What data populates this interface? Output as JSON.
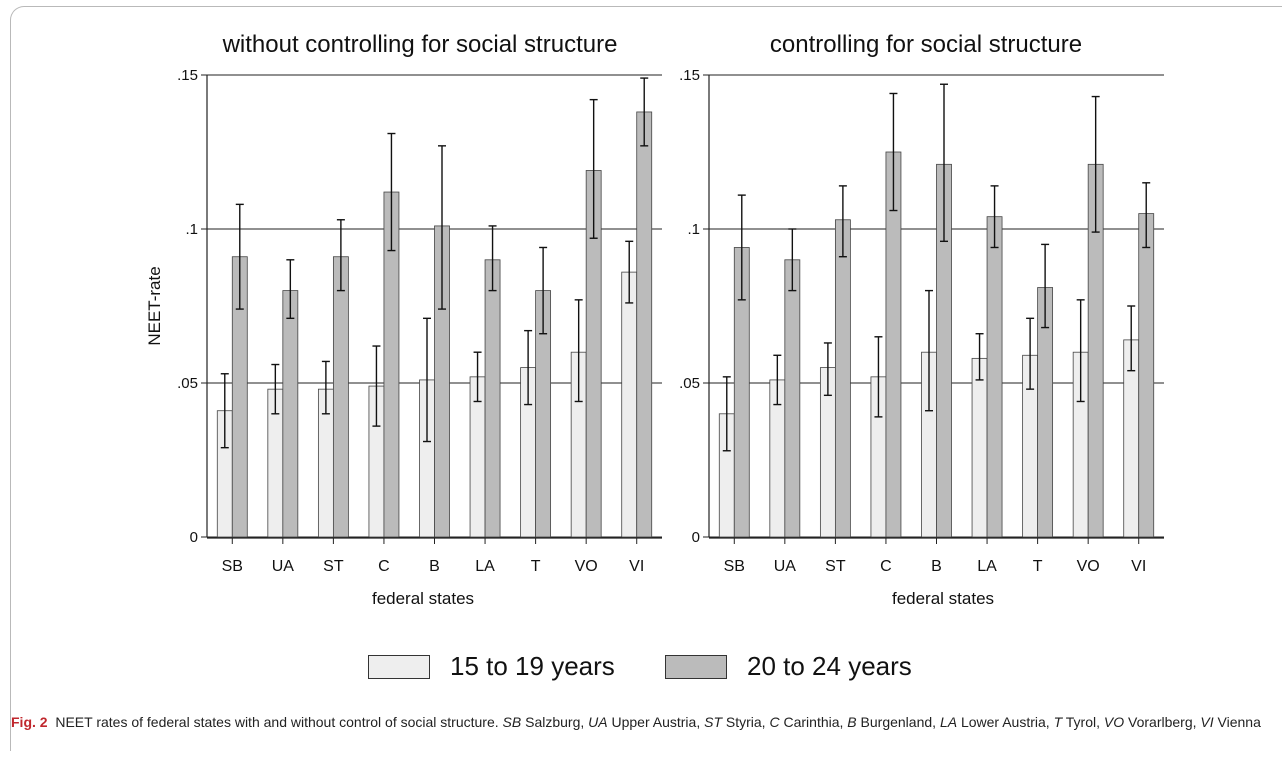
{
  "colors": {
    "bar_15_19": "#eeeeee",
    "bar_20_24": "#bbbbbb",
    "stroke": "#222222",
    "gridline": "#222222",
    "figure_label": "#c0272d"
  },
  "legend": {
    "items": [
      {
        "label": "15 to 19 years",
        "color": "#eeeeee"
      },
      {
        "label": "20 to 24 years",
        "color": "#bbbbbb"
      }
    ]
  },
  "caption": {
    "fig_label": "Fig. 2",
    "title": "NEET rates of federal states with and without control of social structure.",
    "abbreviations": [
      {
        "abbr": "SB",
        "name": "Salzburg"
      },
      {
        "abbr": "UA",
        "name": "Upper Austria"
      },
      {
        "abbr": "ST",
        "name": "Styria"
      },
      {
        "abbr": "C",
        "name": "Carinthia"
      },
      {
        "abbr": "B",
        "name": "Burgenland"
      },
      {
        "abbr": "LA",
        "name": "Lower Austria"
      },
      {
        "abbr": "T",
        "name": "Tyrol"
      },
      {
        "abbr": "VO",
        "name": "Vorarlberg"
      },
      {
        "abbr": "VI",
        "name": "Vienna"
      }
    ]
  },
  "chart_data": [
    {
      "type": "bar",
      "title": "without controlling for social structure",
      "xlabel": "federal states",
      "ylabel": "NEET-rate",
      "ylim": [
        0,
        0.15
      ],
      "yticks": [
        0,
        0.05,
        0.1,
        0.15
      ],
      "ytick_labels": [
        "0",
        ".05",
        ".1",
        ".15"
      ],
      "grid": true,
      "categories": [
        "SB",
        "UA",
        "ST",
        "C",
        "B",
        "LA",
        "T",
        "VO",
        "VI"
      ],
      "series": [
        {
          "name": "15 to 19 years",
          "values": [
            0.041,
            0.048,
            0.048,
            0.049,
            0.051,
            0.052,
            0.055,
            0.06,
            0.086
          ],
          "ci_low": [
            0.029,
            0.04,
            0.04,
            0.036,
            0.031,
            0.044,
            0.043,
            0.044,
            0.076
          ],
          "ci_high": [
            0.053,
            0.056,
            0.057,
            0.062,
            0.071,
            0.06,
            0.067,
            0.077,
            0.096
          ]
        },
        {
          "name": "20 to 24 years",
          "values": [
            0.091,
            0.08,
            0.091,
            0.112,
            0.101,
            0.09,
            0.08,
            0.119,
            0.138
          ],
          "ci_low": [
            0.074,
            0.071,
            0.08,
            0.093,
            0.074,
            0.08,
            0.066,
            0.097,
            0.127
          ],
          "ci_high": [
            0.108,
            0.09,
            0.103,
            0.131,
            0.127,
            0.101,
            0.094,
            0.142,
            0.149
          ]
        }
      ]
    },
    {
      "type": "bar",
      "title": "controlling for social structure",
      "xlabel": "federal states",
      "ylabel": "",
      "ylim": [
        0,
        0.15
      ],
      "yticks": [
        0,
        0.05,
        0.1,
        0.15
      ],
      "ytick_labels": [
        "0",
        ".05",
        ".1",
        ".15"
      ],
      "grid": true,
      "categories": [
        "SB",
        "UA",
        "ST",
        "C",
        "B",
        "LA",
        "T",
        "VO",
        "VI"
      ],
      "series": [
        {
          "name": "15 to 19 years",
          "values": [
            0.04,
            0.051,
            0.055,
            0.052,
            0.06,
            0.058,
            0.059,
            0.06,
            0.064
          ],
          "ci_low": [
            0.028,
            0.043,
            0.046,
            0.039,
            0.041,
            0.051,
            0.048,
            0.044,
            0.054
          ],
          "ci_high": [
            0.052,
            0.059,
            0.063,
            0.065,
            0.08,
            0.066,
            0.071,
            0.077,
            0.075
          ]
        },
        {
          "name": "20 to 24 years",
          "values": [
            0.094,
            0.09,
            0.103,
            0.125,
            0.121,
            0.104,
            0.081,
            0.121,
            0.105
          ],
          "ci_low": [
            0.077,
            0.08,
            0.091,
            0.106,
            0.096,
            0.094,
            0.068,
            0.099,
            0.094
          ],
          "ci_high": [
            0.111,
            0.1,
            0.114,
            0.144,
            0.147,
            0.114,
            0.095,
            0.143,
            0.115
          ]
        }
      ]
    }
  ]
}
